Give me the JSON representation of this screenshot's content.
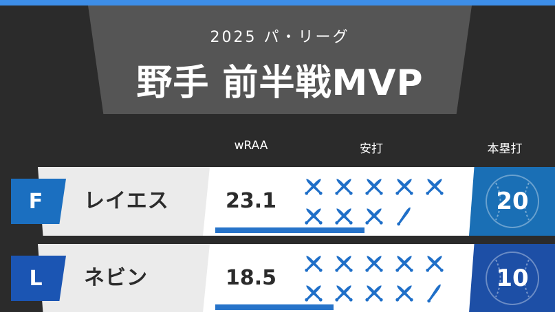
{
  "header": {
    "subtitle": "2025 パ・リーグ",
    "title": "野手 前半戦MVP",
    "accent": "#3d8ee8"
  },
  "columns": {
    "wraa": "wRAA",
    "hits": "安打",
    "hr": "本塁打"
  },
  "players": [
    {
      "team": "F",
      "team_color": "#1b6fc0",
      "name": "レイエス",
      "wraa": "23.1",
      "wraa_fraction": 0.59,
      "hits_icons_full": 8,
      "hits_icons_partial": 1,
      "hr": "20",
      "hr_color": "#1a6fb5"
    },
    {
      "team": "L",
      "team_color": "#1b55b3",
      "name": "ネビン",
      "wraa": "18.5",
      "wraa_fraction": 0.47,
      "hits_icons_full": 9,
      "hits_icons_partial": 1,
      "hr": "10",
      "hr_color": "#1d4fa6"
    }
  ]
}
